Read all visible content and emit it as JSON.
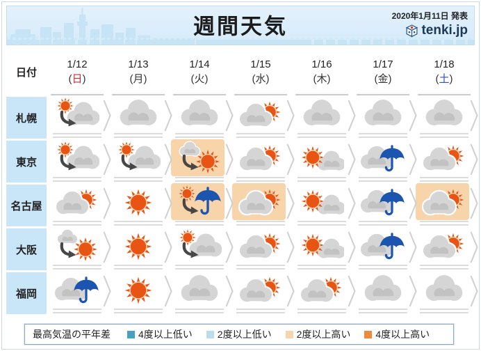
{
  "header": {
    "published": "2020年1月11日 発表",
    "title": "週間天気",
    "logo_text": "tenki.jp"
  },
  "table": {
    "date_label": "日付",
    "columns": [
      {
        "date": "1/12",
        "weekday": "日",
        "weekday_color": "#c93030"
      },
      {
        "date": "1/13",
        "weekday": "月",
        "weekday_color": "#333333"
      },
      {
        "date": "1/14",
        "weekday": "火",
        "weekday_color": "#333333"
      },
      {
        "date": "1/15",
        "weekday": "水",
        "weekday_color": "#333333"
      },
      {
        "date": "1/16",
        "weekday": "木",
        "weekday_color": "#333333"
      },
      {
        "date": "1/17",
        "weekday": "金",
        "weekday_color": "#333333"
      },
      {
        "date": "1/18",
        "weekday": "土",
        "weekday_color": "#2c50c4"
      }
    ],
    "rows": [
      {
        "city": "札幌",
        "cells": [
          {
            "icon": "sunny-then-cloudy",
            "highlight": false
          },
          {
            "icon": "cloudy",
            "highlight": false
          },
          {
            "icon": "cloudy",
            "highlight": false
          },
          {
            "icon": "cloudy-partly-sunny",
            "highlight": false
          },
          {
            "icon": "cloudy",
            "highlight": false
          },
          {
            "icon": "cloudy",
            "highlight": false
          },
          {
            "icon": "cloudy",
            "highlight": false
          }
        ]
      },
      {
        "city": "東京",
        "cells": [
          {
            "icon": "sunny-then-cloudy",
            "highlight": false
          },
          {
            "icon": "sunny-then-cloudy",
            "highlight": false
          },
          {
            "icon": "cloudy-then-sunny",
            "highlight": true
          },
          {
            "icon": "cloudy-partly-sunny",
            "highlight": false
          },
          {
            "icon": "sunny-partly-cloudy",
            "highlight": false
          },
          {
            "icon": "cloudy-rain",
            "highlight": false
          },
          {
            "icon": "cloudy-partly-sunny",
            "highlight": false
          }
        ]
      },
      {
        "city": "名古屋",
        "cells": [
          {
            "icon": "cloudy-partly-sunny",
            "highlight": false
          },
          {
            "icon": "sunny",
            "highlight": false
          },
          {
            "icon": "sunny-then-rain",
            "highlight": true
          },
          {
            "icon": "cloudy-partly-sunny",
            "highlight": true
          },
          {
            "icon": "sunny-partly-cloudy",
            "highlight": false
          },
          {
            "icon": "cloudy-rain",
            "highlight": false
          },
          {
            "icon": "cloudy-partly-sunny",
            "highlight": true
          }
        ]
      },
      {
        "city": "大阪",
        "cells": [
          {
            "icon": "cloudy-then-sunny",
            "highlight": false
          },
          {
            "icon": "sunny",
            "highlight": false
          },
          {
            "icon": "sunny-then-cloudy",
            "highlight": false
          },
          {
            "icon": "cloudy-partly-sunny",
            "highlight": false
          },
          {
            "icon": "sunny-partly-cloudy",
            "highlight": false
          },
          {
            "icon": "cloudy-rain",
            "highlight": false
          },
          {
            "icon": "cloudy-partly-sunny",
            "highlight": false
          }
        ]
      },
      {
        "city": "福岡",
        "cells": [
          {
            "icon": "cloudy-rain",
            "highlight": false
          },
          {
            "icon": "sunny",
            "highlight": false
          },
          {
            "icon": "cloudy",
            "highlight": false
          },
          {
            "icon": "cloudy-partly-sunny",
            "highlight": false
          },
          {
            "icon": "cloudy-partly-sunny",
            "highlight": false
          },
          {
            "icon": "cloudy",
            "highlight": false
          },
          {
            "icon": "cloudy",
            "highlight": false
          }
        ]
      }
    ]
  },
  "legend": {
    "title": "最高気温の平年差",
    "items": [
      {
        "label": "4度以上低い",
        "color": "#4aa0c2"
      },
      {
        "label": "2度以上低い",
        "color": "#badcec"
      },
      {
        "label": "2度以上高い",
        "color": "#f6d4ae"
      },
      {
        "label": "4度以上高い",
        "color": "#ee8a3c"
      }
    ]
  },
  "colors": {
    "highlight_warm2": "#f8d4ab",
    "sun": "#e75414",
    "cloud": "#d5d5d5",
    "umbrella": "#1b55b0"
  },
  "chart_data": {
    "type": "table",
    "title": "週間天気",
    "published": "2020年1月11日 発表",
    "columns": [
      "1/12(日)",
      "1/13(月)",
      "1/14(火)",
      "1/15(水)",
      "1/16(木)",
      "1/17(金)",
      "1/18(土)"
    ],
    "rows": [
      {
        "city": "札幌",
        "forecast": [
          "晴のち曇",
          "曇",
          "曇",
          "曇時々晴",
          "曇",
          "曇",
          "曇"
        ]
      },
      {
        "city": "東京",
        "forecast": [
          "晴のち曇",
          "晴のち曇",
          "曇のち晴",
          "曇時々晴",
          "晴時々曇",
          "曇時々雨",
          "曇時々晴"
        ]
      },
      {
        "city": "名古屋",
        "forecast": [
          "曇時々晴",
          "晴",
          "晴のち雨",
          "曇時々晴",
          "晴時々曇",
          "曇時々雨",
          "曇時々晴"
        ]
      },
      {
        "city": "大阪",
        "forecast": [
          "曇のち晴",
          "晴",
          "晴のち曇",
          "曇時々晴",
          "晴時々曇",
          "曇時々雨",
          "曇時々晴"
        ]
      },
      {
        "city": "福岡",
        "forecast": [
          "曇時々雨",
          "晴",
          "曇",
          "曇時々晴",
          "曇時々晴",
          "曇",
          "曇"
        ]
      }
    ],
    "temp_anomaly_highlights": [
      {
        "city": "東京",
        "date": "1/14",
        "anomaly": "2度以上高い"
      },
      {
        "city": "名古屋",
        "date": "1/14",
        "anomaly": "2度以上高い"
      },
      {
        "city": "名古屋",
        "date": "1/15",
        "anomaly": "2度以上高い"
      },
      {
        "city": "名古屋",
        "date": "1/18",
        "anomaly": "2度以上高い"
      }
    ],
    "legend": {
      "title": "最高気温の平年差",
      "labels": [
        "4度以上低い",
        "2度以上低い",
        "2度以上高い",
        "4度以上高い"
      ]
    }
  }
}
